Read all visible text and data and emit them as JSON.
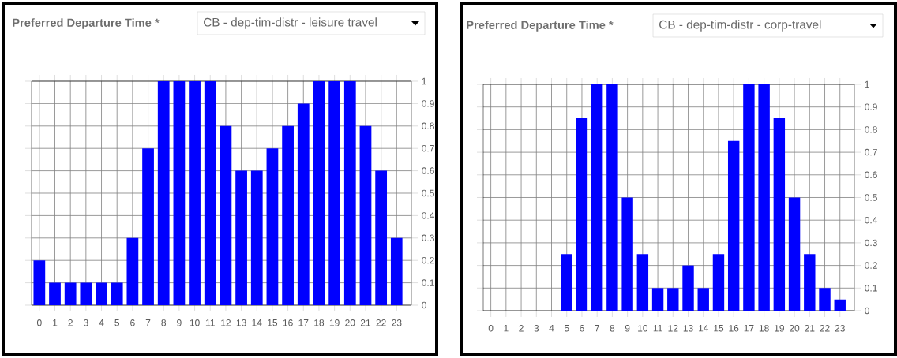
{
  "chart_data": [
    {
      "type": "bar",
      "title": "Preferred Departure Time *",
      "subtitle": "CB - dep-tim-distr - leisure travel",
      "categories": [
        "0",
        "1",
        "2",
        "3",
        "4",
        "5",
        "6",
        "7",
        "8",
        "9",
        "10",
        "11",
        "12",
        "13",
        "14",
        "15",
        "16",
        "17",
        "18",
        "19",
        "20",
        "21",
        "22",
        "23"
      ],
      "values": [
        0.2,
        0.1,
        0.1,
        0.1,
        0.1,
        0.1,
        0.3,
        0.7,
        1,
        1,
        1,
        1,
        0.8,
        0.6,
        0.6,
        0.7,
        0.8,
        0.9,
        1,
        1,
        1,
        0.8,
        0.6,
        0.3
      ],
      "color": "#0000ff",
      "ylim": [
        0,
        1
      ],
      "yticks": [
        0,
        0.1,
        0.2,
        0.3,
        0.4,
        0.5,
        0.6,
        0.7,
        0.8,
        0.9,
        1
      ],
      "grid": true
    },
    {
      "type": "bar",
      "title": "Preferred Departure Time *",
      "subtitle": "CB - dep-tim-distr - corp-travel",
      "categories": [
        "0",
        "1",
        "2",
        "3",
        "4",
        "5",
        "6",
        "7",
        "8",
        "9",
        "10",
        "11",
        "12",
        "13",
        "14",
        "15",
        "16",
        "17",
        "18",
        "19",
        "20",
        "21",
        "22",
        "23"
      ],
      "values": [
        0,
        0,
        0,
        0,
        0,
        0.25,
        0.85,
        1,
        1,
        0.5,
        0.25,
        0.1,
        0.1,
        0.2,
        0.1,
        0.25,
        0.75,
        1,
        1,
        0.85,
        0.5,
        0.25,
        0.1,
        0.05
      ],
      "color": "#0000ff",
      "ylim": [
        0,
        1
      ],
      "yticks": [
        0,
        0.1,
        0.2,
        0.3,
        0.4,
        0.5,
        0.6,
        0.7,
        0.8,
        0.9,
        1
      ],
      "grid": true
    }
  ]
}
